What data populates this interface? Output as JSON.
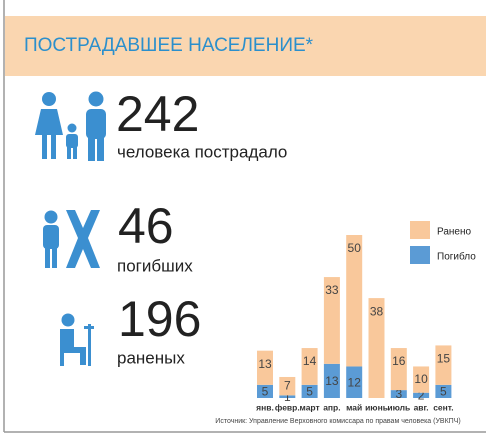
{
  "header": {
    "title": "ПОСТРАДАВШЕЕ НАСЕЛЕНИЕ*"
  },
  "stats": [
    {
      "value": 242,
      "label": "человека пострадало"
    },
    {
      "value": 46,
      "label": "погибших"
    },
    {
      "value": 196,
      "label": "раненых"
    }
  ],
  "chart_data": {
    "type": "stacked_bar",
    "categories": [
      "янв.",
      "февр.",
      "март",
      "апр.",
      "май",
      "июнь",
      "июль",
      "авг.",
      "сент."
    ],
    "series": [
      {
        "name": "Погибло",
        "color": "#5b9bd5",
        "values": [
          5,
          1,
          5,
          13,
          12,
          0,
          3,
          2,
          5
        ]
      },
      {
        "name": "Ранено",
        "color": "#f9c89b",
        "values": [
          13,
          7,
          14,
          33,
          50,
          38,
          16,
          10,
          15
        ]
      }
    ]
  },
  "source": "Источник: Управление Верховного комиссара по правам человека (УВКПЧ)"
}
